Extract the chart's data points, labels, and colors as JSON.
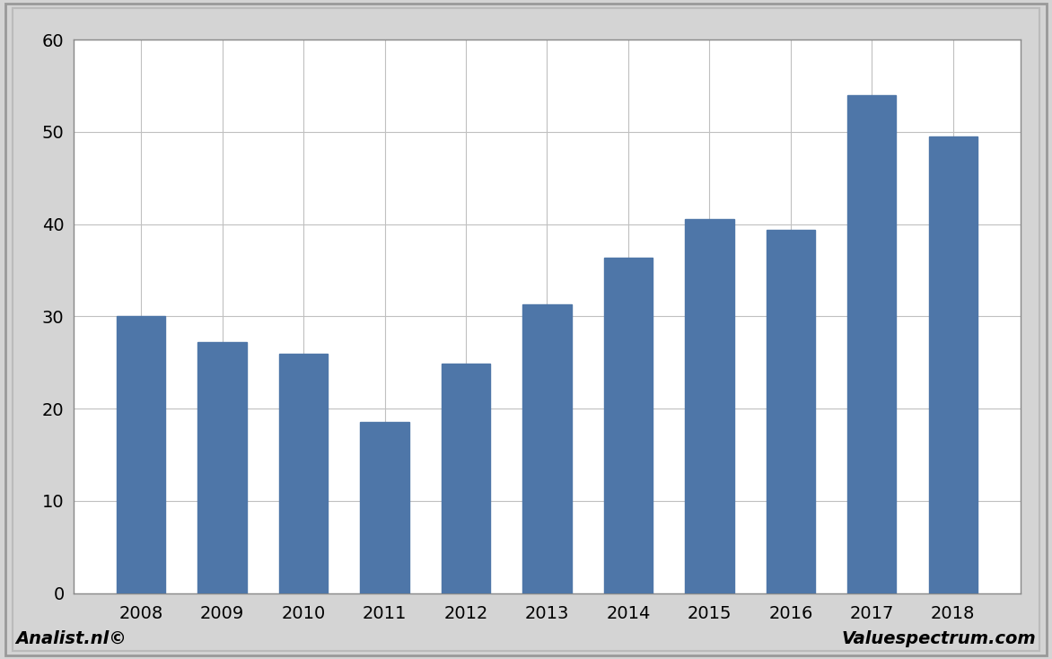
{
  "categories": [
    "2008",
    "2009",
    "2010",
    "2011",
    "2012",
    "2013",
    "2014",
    "2015",
    "2016",
    "2017",
    "2018"
  ],
  "values": [
    30.0,
    27.2,
    25.9,
    18.5,
    24.9,
    31.3,
    36.4,
    40.5,
    39.4,
    54.0,
    49.5
  ],
  "bar_color": "#4e76a8",
  "ylim": [
    0,
    60
  ],
  "yticks": [
    0,
    10,
    20,
    30,
    40,
    50,
    60
  ],
  "background_color": "#d4d4d4",
  "plot_area_bg": "#ffffff",
  "grid_color": "#c0c0c0",
  "border_color": "#888888",
  "footer_left": "Analist.nl©",
  "footer_right": "Valuespectrum.com",
  "footer_fontsize": 14,
  "tick_fontsize": 14,
  "bar_width": 0.6
}
